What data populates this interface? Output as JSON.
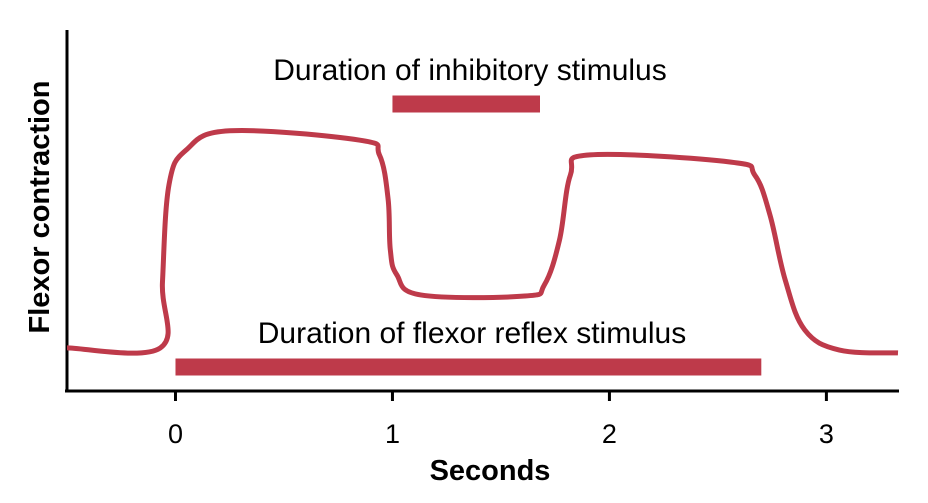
{
  "chart_data": {
    "type": "line",
    "title": "",
    "xlabel": "Seconds",
    "ylabel": "Flexor contraction",
    "xlim": [
      -0.5,
      3.33
    ],
    "ylim": [
      0,
      1
    ],
    "x_ticks": [
      "0",
      "1",
      "2",
      "3"
    ],
    "y_ticks": [],
    "grid": false,
    "color": "#be3a4a",
    "series": [
      {
        "x": [
          -0.5,
          -0.07,
          -0.06,
          -0.03,
          0.05,
          0.25,
          0.85,
          0.94,
          0.98,
          0.99,
          1.02,
          1.13,
          1.61,
          1.7,
          1.77,
          1.82,
          1.91,
          2.56,
          2.67,
          2.74,
          2.81,
          2.9,
          3.06,
          3.33
        ],
        "y": [
          0.117,
          0.117,
          0.3,
          0.57,
          0.667,
          0.72,
          0.694,
          0.653,
          0.53,
          0.39,
          0.32,
          0.264,
          0.261,
          0.292,
          0.417,
          0.597,
          0.653,
          0.633,
          0.597,
          0.486,
          0.306,
          0.167,
          0.111,
          0.103
        ]
      }
    ],
    "annotations": [
      {
        "text": "Duration of inhibitory stimulus",
        "start": 1.0,
        "end": 1.68
      },
      {
        "text": "Duration of flexor reflex stimulus",
        "start": 0.0,
        "end": 2.7
      }
    ]
  }
}
